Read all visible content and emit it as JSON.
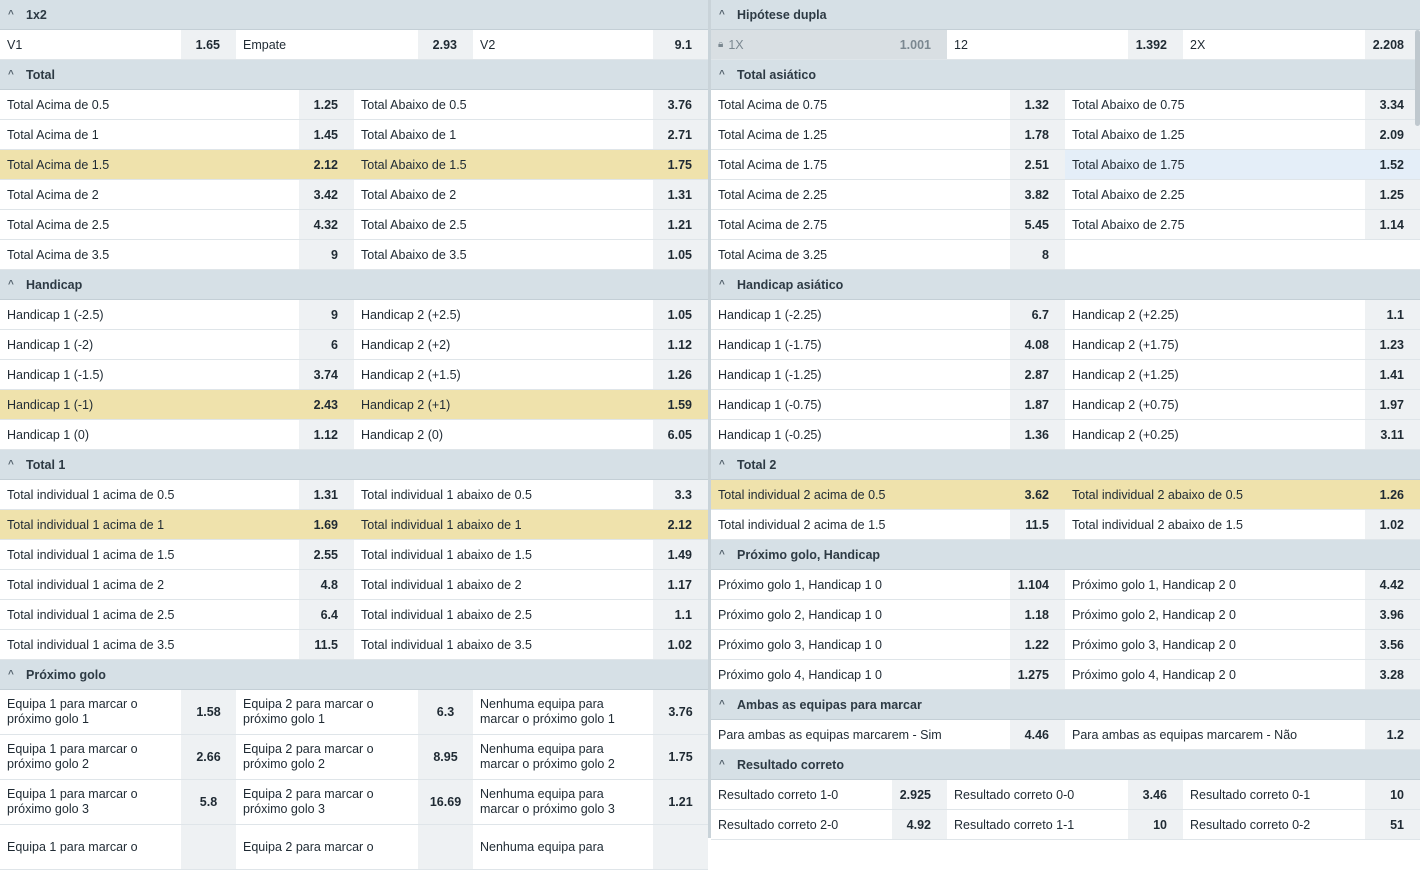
{
  "left_markets": [
    {
      "title": "1x2",
      "widths": [
        236,
        237,
        235
      ],
      "rows": [
        {
          "cells": [
            {
              "label": "V1",
              "odd": "1.65"
            },
            {
              "label": "Empate",
              "odd": "2.93"
            },
            {
              "label": "V2",
              "odd": "9.1"
            }
          ]
        }
      ]
    },
    {
      "title": "Total",
      "widths": [
        354,
        354
      ],
      "rows": [
        {
          "cells": [
            {
              "label": "Total Acima de 0.5",
              "odd": "1.25"
            },
            {
              "label": "Total Abaixo de 0.5",
              "odd": "3.76"
            }
          ]
        },
        {
          "cells": [
            {
              "label": "Total Acima de 1",
              "odd": "1.45"
            },
            {
              "label": "Total Abaixo de 1",
              "odd": "2.71"
            }
          ]
        },
        {
          "cells": [
            {
              "label": "Total Acima de 1.5",
              "odd": "2.12",
              "state": "hl"
            },
            {
              "label": "Total Abaixo de 1.5",
              "odd": "1.75",
              "state": "hl"
            }
          ]
        },
        {
          "cells": [
            {
              "label": "Total Acima de 2",
              "odd": "3.42"
            },
            {
              "label": "Total Abaixo de 2",
              "odd": "1.31"
            }
          ]
        },
        {
          "cells": [
            {
              "label": "Total Acima de 2.5",
              "odd": "4.32"
            },
            {
              "label": "Total Abaixo de 2.5",
              "odd": "1.21"
            }
          ]
        },
        {
          "cells": [
            {
              "label": "Total Acima de 3.5",
              "odd": "9"
            },
            {
              "label": "Total Abaixo de 3.5",
              "odd": "1.05"
            }
          ]
        }
      ]
    },
    {
      "title": "Handicap",
      "widths": [
        354,
        354
      ],
      "rows": [
        {
          "cells": [
            {
              "label": "Handicap 1 (-2.5)",
              "odd": "9"
            },
            {
              "label": "Handicap 2 (+2.5)",
              "odd": "1.05"
            }
          ]
        },
        {
          "cells": [
            {
              "label": "Handicap 1 (-2)",
              "odd": "6"
            },
            {
              "label": "Handicap 2 (+2)",
              "odd": "1.12"
            }
          ]
        },
        {
          "cells": [
            {
              "label": "Handicap 1 (-1.5)",
              "odd": "3.74"
            },
            {
              "label": "Handicap 2 (+1.5)",
              "odd": "1.26"
            }
          ]
        },
        {
          "cells": [
            {
              "label": "Handicap 1 (-1)",
              "odd": "2.43",
              "state": "hl"
            },
            {
              "label": "Handicap 2 (+1)",
              "odd": "1.59",
              "state": "hl"
            }
          ]
        },
        {
          "cells": [
            {
              "label": "Handicap 1 (0)",
              "odd": "1.12"
            },
            {
              "label": "Handicap 2 (0)",
              "odd": "6.05"
            }
          ]
        }
      ]
    },
    {
      "title": "Total 1",
      "widths": [
        354,
        354
      ],
      "rows": [
        {
          "cells": [
            {
              "label": "Total individual 1 acima de 0.5",
              "odd": "1.31"
            },
            {
              "label": "Total individual 1 abaixo de 0.5",
              "odd": "3.3"
            }
          ]
        },
        {
          "cells": [
            {
              "label": "Total individual 1 acima de 1",
              "odd": "1.69",
              "state": "hl"
            },
            {
              "label": "Total individual 1 abaixo de 1",
              "odd": "2.12",
              "state": "hl"
            }
          ]
        },
        {
          "cells": [
            {
              "label": "Total individual 1 acima de 1.5",
              "odd": "2.55"
            },
            {
              "label": "Total individual 1 abaixo de 1.5",
              "odd": "1.49"
            }
          ]
        },
        {
          "cells": [
            {
              "label": "Total individual 1 acima de 2",
              "odd": "4.8"
            },
            {
              "label": "Total individual 1 abaixo de 2",
              "odd": "1.17"
            }
          ]
        },
        {
          "cells": [
            {
              "label": "Total individual 1 acima de 2.5",
              "odd": "6.4"
            },
            {
              "label": "Total individual 1 abaixo de 2.5",
              "odd": "1.1"
            }
          ]
        },
        {
          "cells": [
            {
              "label": "Total individual 1 acima de 3.5",
              "odd": "11.5"
            },
            {
              "label": "Total individual 1 abaixo de 3.5",
              "odd": "1.02"
            }
          ]
        }
      ]
    },
    {
      "title": "Próximo golo",
      "widths": [
        236,
        237,
        235
      ],
      "tall": true,
      "rows": [
        {
          "cells": [
            {
              "label": "Equipa 1 para marcar o próximo golo 1",
              "odd": "1.58"
            },
            {
              "label": "Equipa 2 para marcar o próximo golo 1",
              "odd": "6.3"
            },
            {
              "label": "Nenhuma equipa para marcar o próximo golo 1",
              "odd": "3.76"
            }
          ]
        },
        {
          "cells": [
            {
              "label": "Equipa 1 para marcar o próximo golo 2",
              "odd": "2.66"
            },
            {
              "label": "Equipa 2 para marcar o próximo golo 2",
              "odd": "8.95"
            },
            {
              "label": "Nenhuma equipa para marcar o próximo golo 2",
              "odd": "1.75"
            }
          ]
        },
        {
          "cells": [
            {
              "label": "Equipa 1 para marcar o próximo golo 3",
              "odd": "5.8"
            },
            {
              "label": "Equipa 2 para marcar o próximo golo 3",
              "odd": "16.69"
            },
            {
              "label": "Nenhuma equipa para marcar o próximo golo 3",
              "odd": "1.21"
            }
          ]
        },
        {
          "cells": [
            {
              "label": "Equipa 1 para marcar o",
              "odd": ""
            },
            {
              "label": "Equipa 2 para marcar o",
              "odd": ""
            },
            {
              "label": "Nenhuma equipa para",
              "odd": ""
            }
          ]
        }
      ]
    }
  ],
  "right_markets": [
    {
      "title": "Hipótese dupla",
      "widths": [
        236,
        236,
        237
      ],
      "rows": [
        {
          "cells": [
            {
              "label": "1X",
              "odd": "1.001",
              "state": "locked"
            },
            {
              "label": "12",
              "odd": "1.392"
            },
            {
              "label": "2X",
              "odd": "2.208"
            }
          ]
        }
      ]
    },
    {
      "title": "Total asiático",
      "widths": [
        354,
        355
      ],
      "rows": [
        {
          "cells": [
            {
              "label": "Total Acima de 0.75",
              "odd": "1.32"
            },
            {
              "label": "Total Abaixo de 0.75",
              "odd": "3.34"
            }
          ]
        },
        {
          "cells": [
            {
              "label": "Total Acima de 1.25",
              "odd": "1.78"
            },
            {
              "label": "Total Abaixo de 1.25",
              "odd": "2.09"
            }
          ]
        },
        {
          "cells": [
            {
              "label": "Total Acima de 1.75",
              "odd": "2.51"
            },
            {
              "label": "Total Abaixo de 1.75",
              "odd": "1.52",
              "state": "sel"
            }
          ]
        },
        {
          "cells": [
            {
              "label": "Total Acima de 2.25",
              "odd": "3.82"
            },
            {
              "label": "Total Abaixo de 2.25",
              "odd": "1.25"
            }
          ]
        },
        {
          "cells": [
            {
              "label": "Total Acima de 2.75",
              "odd": "5.45"
            },
            {
              "label": "Total Abaixo de 2.75",
              "odd": "1.14"
            }
          ]
        },
        {
          "cells": [
            {
              "label": "Total Acima de 3.25",
              "odd": "8"
            },
            null
          ]
        }
      ]
    },
    {
      "title": "Handicap asiático",
      "widths": [
        354,
        355
      ],
      "rows": [
        {
          "cells": [
            {
              "label": "Handicap 1 (-2.25)",
              "odd": "6.7"
            },
            {
              "label": "Handicap 2 (+2.25)",
              "odd": "1.1"
            }
          ]
        },
        {
          "cells": [
            {
              "label": "Handicap 1 (-1.75)",
              "odd": "4.08"
            },
            {
              "label": "Handicap 2 (+1.75)",
              "odd": "1.23"
            }
          ]
        },
        {
          "cells": [
            {
              "label": "Handicap 1 (-1.25)",
              "odd": "2.87"
            },
            {
              "label": "Handicap 2 (+1.25)",
              "odd": "1.41"
            }
          ]
        },
        {
          "cells": [
            {
              "label": "Handicap 1 (-0.75)",
              "odd": "1.87"
            },
            {
              "label": "Handicap 2 (+0.75)",
              "odd": "1.97"
            }
          ]
        },
        {
          "cells": [
            {
              "label": "Handicap 1 (-0.25)",
              "odd": "1.36"
            },
            {
              "label": "Handicap 2 (+0.25)",
              "odd": "3.11"
            }
          ]
        }
      ]
    },
    {
      "title": "Total 2",
      "widths": [
        354,
        355
      ],
      "rows": [
        {
          "cells": [
            {
              "label": "Total individual 2 acima de 0.5",
              "odd": "3.62",
              "state": "hl"
            },
            {
              "label": "Total individual 2 abaixo de 0.5",
              "odd": "1.26",
              "state": "hl"
            }
          ]
        },
        {
          "cells": [
            {
              "label": "Total individual 2 acima de 1.5",
              "odd": "11.5"
            },
            {
              "label": "Total individual 2 abaixo de 1.5",
              "odd": "1.02"
            }
          ]
        }
      ]
    },
    {
      "title": "Próximo golo, Handicap",
      "widths": [
        354,
        355
      ],
      "rows": [
        {
          "cells": [
            {
              "label": "Próximo golo 1, Handicap 1 0",
              "odd": "1.104"
            },
            {
              "label": "Próximo golo 1, Handicap 2 0",
              "odd": "4.42"
            }
          ]
        },
        {
          "cells": [
            {
              "label": "Próximo golo 2, Handicap 1 0",
              "odd": "1.18"
            },
            {
              "label": "Próximo golo 2, Handicap 2 0",
              "odd": "3.96"
            }
          ]
        },
        {
          "cells": [
            {
              "label": "Próximo golo 3, Handicap 1 0",
              "odd": "1.22"
            },
            {
              "label": "Próximo golo 3, Handicap 2 0",
              "odd": "3.56"
            }
          ]
        },
        {
          "cells": [
            {
              "label": "Próximo golo 4, Handicap 1 0",
              "odd": "1.275"
            },
            {
              "label": "Próximo golo 4, Handicap 2 0",
              "odd": "3.28"
            }
          ]
        }
      ]
    },
    {
      "title": "Ambas as equipas para marcar",
      "widths": [
        354,
        355
      ],
      "rows": [
        {
          "cells": [
            {
              "label": "Para ambas as equipas marcarem - Sim",
              "odd": "4.46"
            },
            {
              "label": "Para ambas as equipas marcarem - Não",
              "odd": "1.2"
            }
          ]
        }
      ]
    },
    {
      "title": "Resultado correto",
      "widths": [
        236,
        236,
        237
      ],
      "rows": [
        {
          "cells": [
            {
              "label": "Resultado correto 1-0",
              "odd": "2.925"
            },
            {
              "label": "Resultado correto 0-0",
              "odd": "3.46"
            },
            {
              "label": "Resultado correto 0-1",
              "odd": "10"
            }
          ]
        },
        {
          "cells": [
            {
              "label": "Resultado correto 2-0",
              "odd": "4.92"
            },
            {
              "label": "Resultado correto 1-1",
              "odd": "10"
            },
            {
              "label": "Resultado correto 0-2",
              "odd": "51"
            }
          ]
        }
      ]
    }
  ]
}
